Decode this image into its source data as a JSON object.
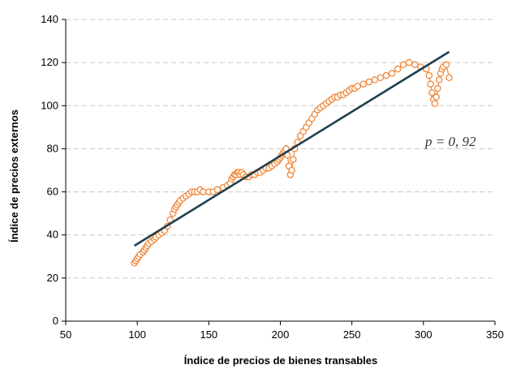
{
  "chart_data": {
    "type": "scatter",
    "title": "",
    "xlabel": "Índice de precios de bienes transables",
    "ylabel": "Índice de precios externos",
    "xlim": [
      50,
      350
    ],
    "ylim": [
      0,
      140
    ],
    "x_ticks": [
      "50",
      "100",
      "150",
      "200",
      "250",
      "300",
      "350"
    ],
    "y_ticks": [
      "0",
      "20",
      "40",
      "60",
      "80",
      "100",
      "120",
      "140"
    ],
    "grid": "horizontal dashed",
    "annotation": {
      "label": "p = 0, 92",
      "x": 305,
      "y": 83
    },
    "colors": {
      "points": "#f0883a",
      "trend": "#1f3f4f",
      "grid": "#c8c8c8",
      "axis": "#000000"
    },
    "series": [
      {
        "type": "scatter-line",
        "color": "#f0883a",
        "x": [
          98,
          99,
          100,
          101,
          102,
          104,
          105,
          106,
          107,
          108,
          110,
          112,
          113,
          115,
          117,
          119,
          121,
          123,
          125,
          126,
          127,
          128,
          129,
          130,
          132,
          134,
          136,
          138,
          140,
          142,
          144,
          146,
          150,
          153,
          156,
          160,
          163,
          165,
          166,
          167,
          168,
          169,
          170,
          171,
          172,
          173,
          174,
          176,
          178,
          180,
          182,
          184,
          186,
          188,
          190,
          192,
          194,
          196,
          198,
          199,
          200,
          201,
          202,
          203,
          204,
          205,
          206,
          207,
          208,
          209,
          210,
          212,
          214,
          216,
          218,
          220,
          222,
          224,
          226,
          228,
          230,
          232,
          234,
          236,
          238,
          240,
          242,
          244,
          246,
          248,
          250,
          252,
          254,
          258,
          262,
          266,
          270,
          274,
          278,
          282,
          286,
          290,
          294,
          298,
          302,
          304,
          305,
          306,
          307,
          308,
          309,
          310,
          311,
          312,
          313,
          314,
          316,
          318
        ],
        "y": [
          27,
          28,
          29,
          30,
          31,
          32,
          33,
          34,
          35,
          36,
          37,
          38,
          39,
          40,
          41,
          42,
          44,
          47,
          50,
          52,
          53,
          54,
          55,
          56,
          57,
          58,
          59,
          60,
          60,
          60,
          61,
          60,
          60,
          60,
          61,
          62,
          63,
          64,
          66,
          67,
          68,
          68,
          69,
          69,
          68,
          69,
          68,
          67,
          67,
          68,
          68,
          69,
          69,
          70,
          71,
          71,
          72,
          73,
          74,
          75,
          76,
          77,
          78,
          79,
          80,
          77,
          72,
          68,
          70,
          75,
          80,
          83,
          86,
          88,
          90,
          92,
          94,
          96,
          98,
          99,
          100,
          101,
          102,
          103,
          104,
          104,
          105,
          105,
          106,
          107,
          108,
          108,
          109,
          110,
          111,
          112,
          113,
          114,
          115,
          117,
          119,
          120,
          119,
          118,
          117,
          114,
          110,
          106,
          103,
          101,
          104,
          108,
          112,
          115,
          117,
          118,
          119,
          113
        ]
      },
      {
        "type": "trend",
        "color": "#1f3f4f",
        "x": [
          98,
          318
        ],
        "y": [
          35,
          125
        ]
      }
    ]
  }
}
